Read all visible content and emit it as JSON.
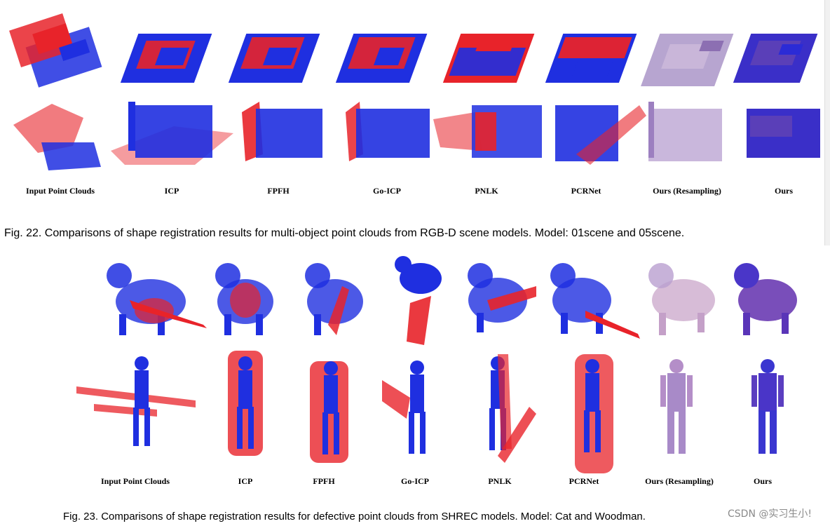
{
  "figure22": {
    "column_labels": [
      "Input Point Clouds",
      "ICP",
      "FPFH",
      "Go-ICP",
      "PNLK",
      "PCRNet",
      "Ours (Resampling)",
      "Ours"
    ],
    "caption": "Fig. 22. Comparisons of shape registration results for multi-object point clouds from RGB-D scene models. Model: 01scene and 05scene."
  },
  "figure23": {
    "column_labels": [
      "Input Point Clouds",
      "ICP",
      "FPFH",
      "Go-ICP",
      "PNLK",
      "PCRNet",
      "Ours (Resampling)",
      "Ours"
    ],
    "caption": "Fig. 23. Comparisons of shape registration results for defective point clouds from SHREC models. Model: Cat and Woodman."
  },
  "watermark": "CSDN @实习生小!",
  "colors": {
    "source": "#e8232a",
    "target": "#1f2fe0",
    "blend": "#a58fc4"
  }
}
